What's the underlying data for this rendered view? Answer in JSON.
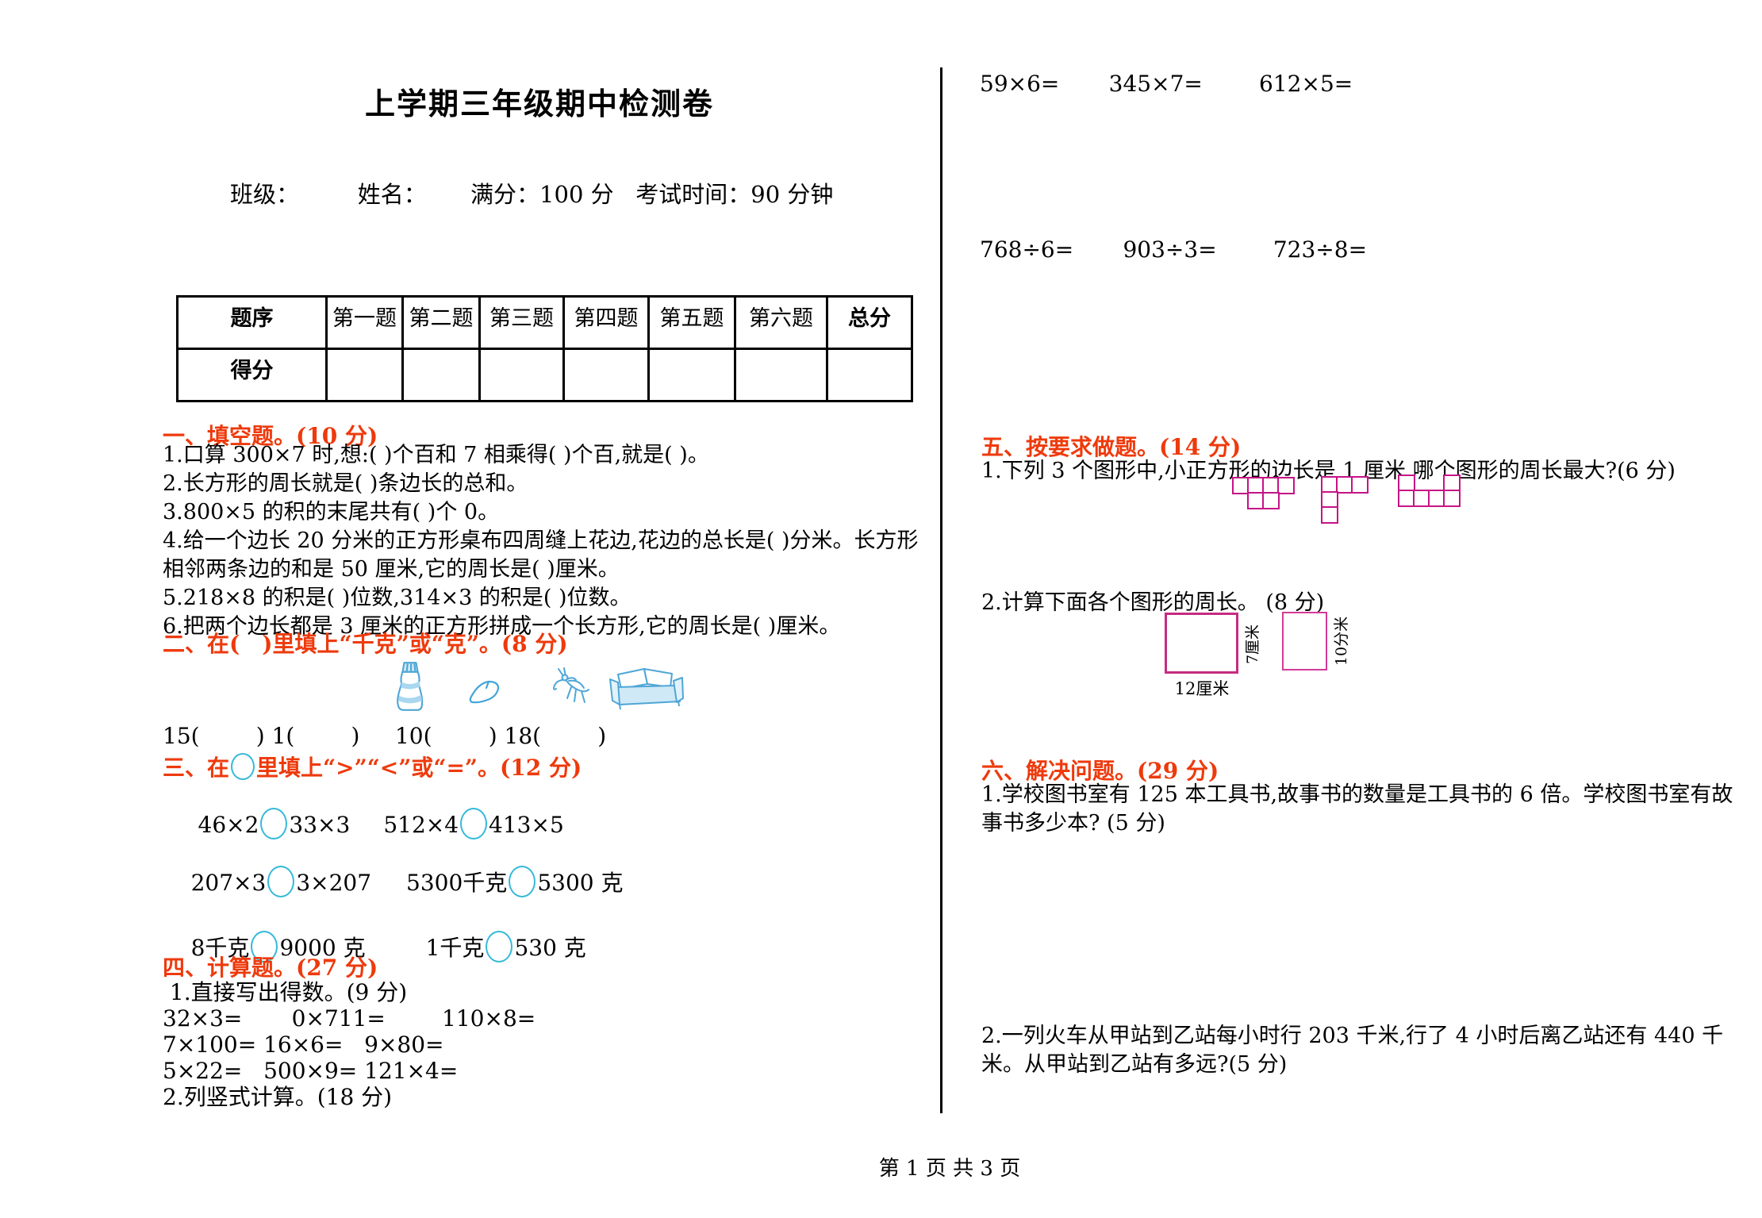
{
  "page": {
    "title": "上学期三年级期中检测卷",
    "header_line": "班级：        姓名：      满分：100 分   考试时间：90 分钟",
    "footer": "第 1 页 共 3 页"
  },
  "score_table": {
    "header_row": [
      "题序",
      "第一题",
      "第二题",
      "第三题",
      "第四题",
      "第五题",
      "第六题",
      "总分"
    ],
    "score_row_label": "得分"
  },
  "section1": {
    "heading": "一、填空题。(10 分)",
    "items": [
      "1.口算 300×7 时,想:(      )个百和 7 相乘得(      )个百,就是(      )。",
      "2.长方形的周长就是(      )条边长的总和。",
      "3.800×5 的积的末尾共有(      )个 0。",
      "4.给一个边长 20 分米的正方形桌布四周缝上花边,花边的总长是(      )分米。长方形相邻两条边的和是 50 厘米,它的周长是(      )厘米。",
      "5.218×8 的积是(      )位数,314×3 的积是(      )位数。",
      "6.把两个边长都是 3 厘米的正方形拼成一个长方形,它的周长是(      )厘米。"
    ]
  },
  "section2": {
    "heading": "二、在(　)里填上“千克”或“克”。(8 分)",
    "icon_names": [
      "glue-bottle",
      "ginkgo-leaf",
      "mantis",
      "sofa"
    ],
    "answers_line": "15(        ) 1(        )     10(        ) 18(        )"
  },
  "section3": {
    "heading_prefix": "三、在",
    "heading_suffix": "里填上“>”“<”或“=”。(12 分)",
    "pairs": [
      {
        "left": " 46×2",
        "right": "33×3"
      },
      {
        "left": "512×4",
        "right": "413×5"
      },
      {
        "left": "207×3",
        "right": "3×207"
      },
      {
        "left": "5300千克",
        "right": "5300 克"
      },
      {
        "left": "8千克",
        "right": "9000 克"
      },
      {
        "left": "1千克",
        "right": "530 克"
      }
    ]
  },
  "section4": {
    "heading": "四、计算题。(27 分)",
    "sub1": " 1.直接写出得数。(9 分)",
    "rows": [
      "32×3=       0×711=        110×8=",
      "7×100= 16×6=   9×80=",
      "5×22=   500×9= 121×4="
    ],
    "sub2": "2.列竖式计算。(18 分)"
  },
  "right_calc": {
    "mult_row": "59×6=       345×7=        612×5=",
    "div_row": "768÷6=       903÷3=        723÷8="
  },
  "section5": {
    "heading": "五、按要求做题。(14 分)",
    "q1": "1.下列 3 个图形中,小正方形的边长是 1 厘米,哪个图形的周长最大?(6 分)",
    "shapes": [
      {
        "grid": [
          [
            1,
            1,
            1,
            1
          ],
          [
            0,
            1,
            1,
            0
          ]
        ]
      },
      {
        "grid": [
          [
            1,
            1,
            1
          ],
          [
            1,
            0,
            0
          ],
          [
            1,
            0,
            0
          ]
        ]
      },
      {
        "grid": [
          [
            1,
            0,
            0,
            1
          ],
          [
            1,
            1,
            1,
            1
          ]
        ]
      }
    ],
    "q2": "2.计算下面各个图形的周长。 (8 分)",
    "rect1": {
      "bottom_label": "12厘米",
      "side_label": "7厘米"
    },
    "rect2": {
      "side_label": "10分米"
    }
  },
  "section6": {
    "heading": "六、解决问题。(29 分)",
    "q1": "1.学校图书室有 125 本工具书,故事书的数量是工具书的 6 倍。学校图书室有故事书多少本? (5 分)",
    "q2": "2.一列火车从甲站到乙站每小时行 203 千米,行了 4 小时后离乙站还有 440 千米。从甲站到乙站有多远?(5 分)"
  }
}
